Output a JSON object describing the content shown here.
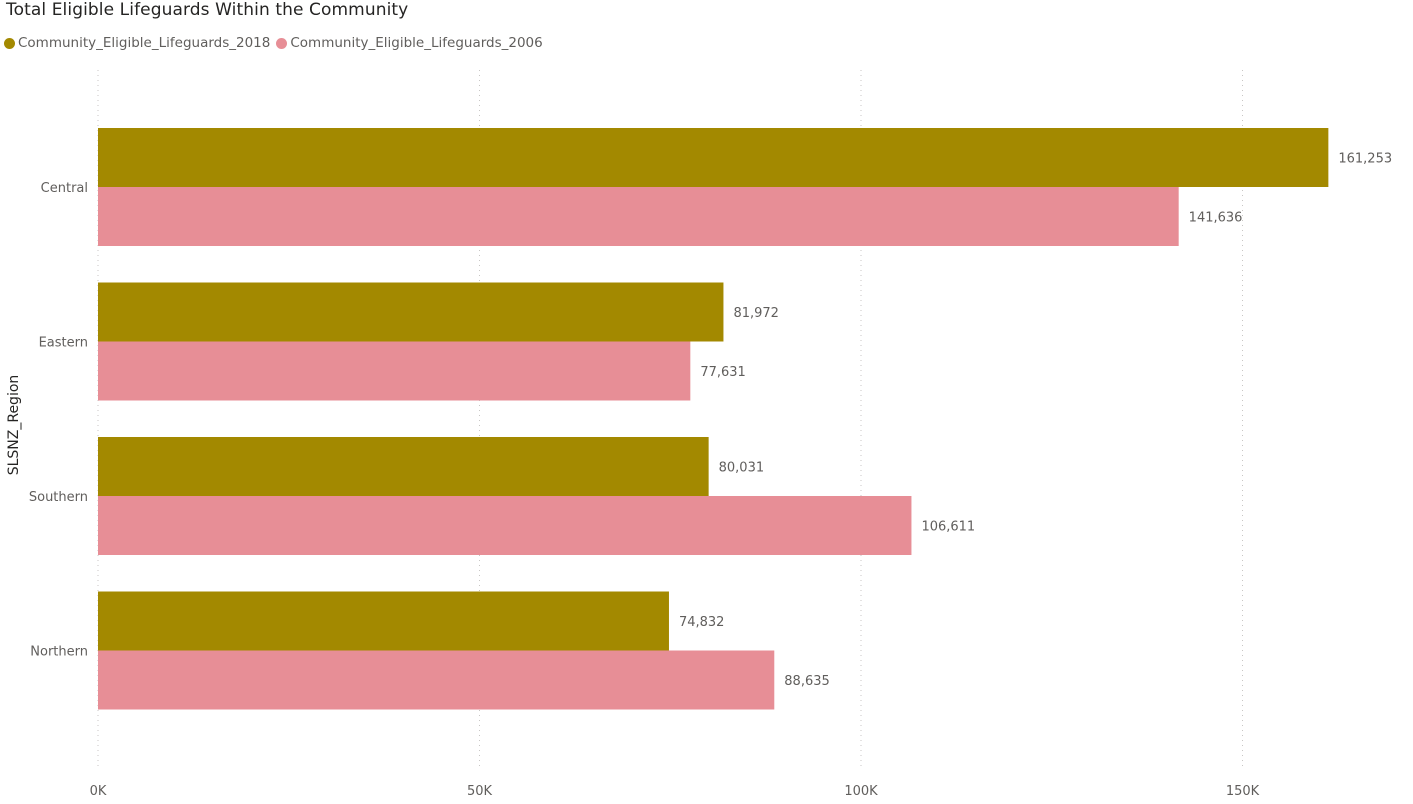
{
  "chart_data": {
    "type": "bar",
    "orientation": "horizontal",
    "title": "Total Eligible Lifeguards Within the Community",
    "ylabel": "SLSNZ_Region",
    "xlabel": "",
    "categories": [
      "Central",
      "Eastern",
      "Southern",
      "Northern"
    ],
    "series": [
      {
        "name": "Community_Eligible_Lifeguards_2018",
        "color": "#a38900",
        "values": [
          161253,
          81972,
          80031,
          74832
        ],
        "labels": [
          "161,253",
          "81,972",
          "80,031",
          "74,832"
        ]
      },
      {
        "name": "Community_Eligible_Lifeguards_2006",
        "color": "#e78e96",
        "values": [
          141636,
          77631,
          106611,
          88635
        ],
        "labels": [
          "141,636",
          "77,631",
          "106,611",
          "88,635"
        ]
      }
    ],
    "xlim": [
      0,
      170000
    ],
    "x_ticks": [
      0,
      50000,
      100000,
      150000
    ],
    "x_tick_labels": [
      "0K",
      "50K",
      "100K",
      "150K"
    ],
    "grid": "vertical-dotted",
    "legend_position": "top-left"
  }
}
